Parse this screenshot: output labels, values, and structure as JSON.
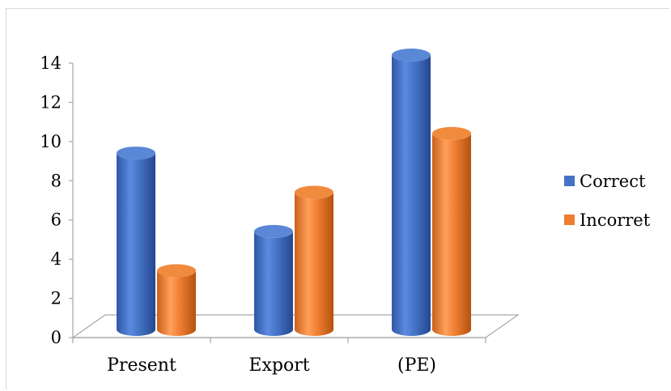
{
  "chart_data": {
    "type": "bar",
    "style": "3d-cylinder",
    "categories": [
      "Present",
      "Export",
      "(PE)"
    ],
    "series": [
      {
        "name": "Correct",
        "values": [
          9,
          5,
          14
        ],
        "color": "#4472C4"
      },
      {
        "name": "Incorret",
        "values": [
          3,
          7,
          10
        ],
        "color": "#ED7D31"
      }
    ],
    "title": "",
    "xlabel": "",
    "ylabel": "",
    "ylim": [
      0,
      14
    ],
    "yticks": [
      "0",
      "2",
      "4",
      "6",
      "8",
      "10",
      "12",
      "14"
    ],
    "grid": false,
    "legend_position": "right"
  }
}
